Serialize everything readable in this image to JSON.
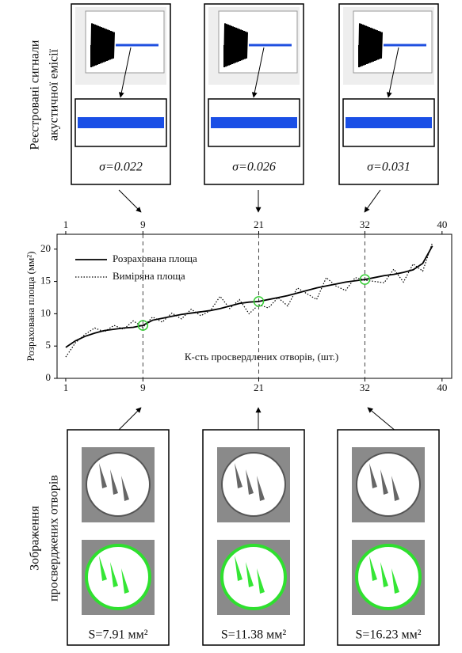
{
  "signals_label": [
    "Реєстровані сигнали",
    "акустичної емісії"
  ],
  "signals": [
    {
      "sigma": "σ=0.022"
    },
    {
      "sigma": "σ=0.026"
    },
    {
      "sigma": "σ=0.031"
    }
  ],
  "holes_label": [
    "Зображення",
    "просверджених отворів"
  ],
  "holes": [
    {
      "area": "S=7.91 мм²"
    },
    {
      "area": "S=11.38 мм²"
    },
    {
      "area": "S=16.23 мм²"
    }
  ],
  "chart_data": {
    "type": "line",
    "y_label": "Розрахована площа (мм²)",
    "x_label": "К-сть просвердлених отворів, (шт.)",
    "x": [
      1,
      2,
      3,
      4,
      5,
      6,
      7,
      8,
      9,
      10,
      11,
      12,
      13,
      14,
      15,
      16,
      17,
      18,
      19,
      20,
      21,
      22,
      23,
      24,
      25,
      26,
      27,
      28,
      29,
      30,
      31,
      32,
      33,
      34,
      35,
      36,
      37,
      38,
      39
    ],
    "series": [
      {
        "name": "Розрахована площа",
        "color": "#000000",
        "style": "solid",
        "values": [
          4.8,
          5.8,
          6.5,
          7.0,
          7.4,
          7.6,
          7.8,
          7.9,
          8.2,
          9.0,
          9.3,
          9.6,
          9.9,
          10.1,
          10.3,
          10.5,
          10.8,
          11.2,
          11.6,
          11.8,
          11.9,
          12.2,
          12.5,
          12.8,
          13.2,
          13.6,
          14.0,
          14.3,
          14.6,
          14.9,
          15.1,
          15.3,
          15.6,
          15.9,
          16.1,
          16.4,
          16.8,
          17.8,
          20.5
        ]
      },
      {
        "name": "Виміряна площа",
        "color": "#000000",
        "style": "dotted",
        "values": [
          3.3,
          5.5,
          6.8,
          7.8,
          7.2,
          8.2,
          7.6,
          8.9,
          7.9,
          9.5,
          8.7,
          10.1,
          9.2,
          10.7,
          9.7,
          10.5,
          12.7,
          10.8,
          12.2,
          10.0,
          11.4,
          10.9,
          12.5,
          11.2,
          14.0,
          13.1,
          12.2,
          15.6,
          14.3,
          13.6,
          15.6,
          15.2,
          15.0,
          14.8,
          16.9,
          14.9,
          17.7,
          16.6,
          21.0
        ]
      }
    ],
    "highlights": [
      9,
      21,
      32
    ],
    "highlight_color": "#33cc33",
    "xlim": [
      0.1,
      41
    ],
    "xticks": [
      1,
      9,
      21,
      32,
      40
    ],
    "ylim": [
      0,
      22.3
    ],
    "yticks": [
      0,
      5,
      10,
      15,
      20
    ]
  }
}
